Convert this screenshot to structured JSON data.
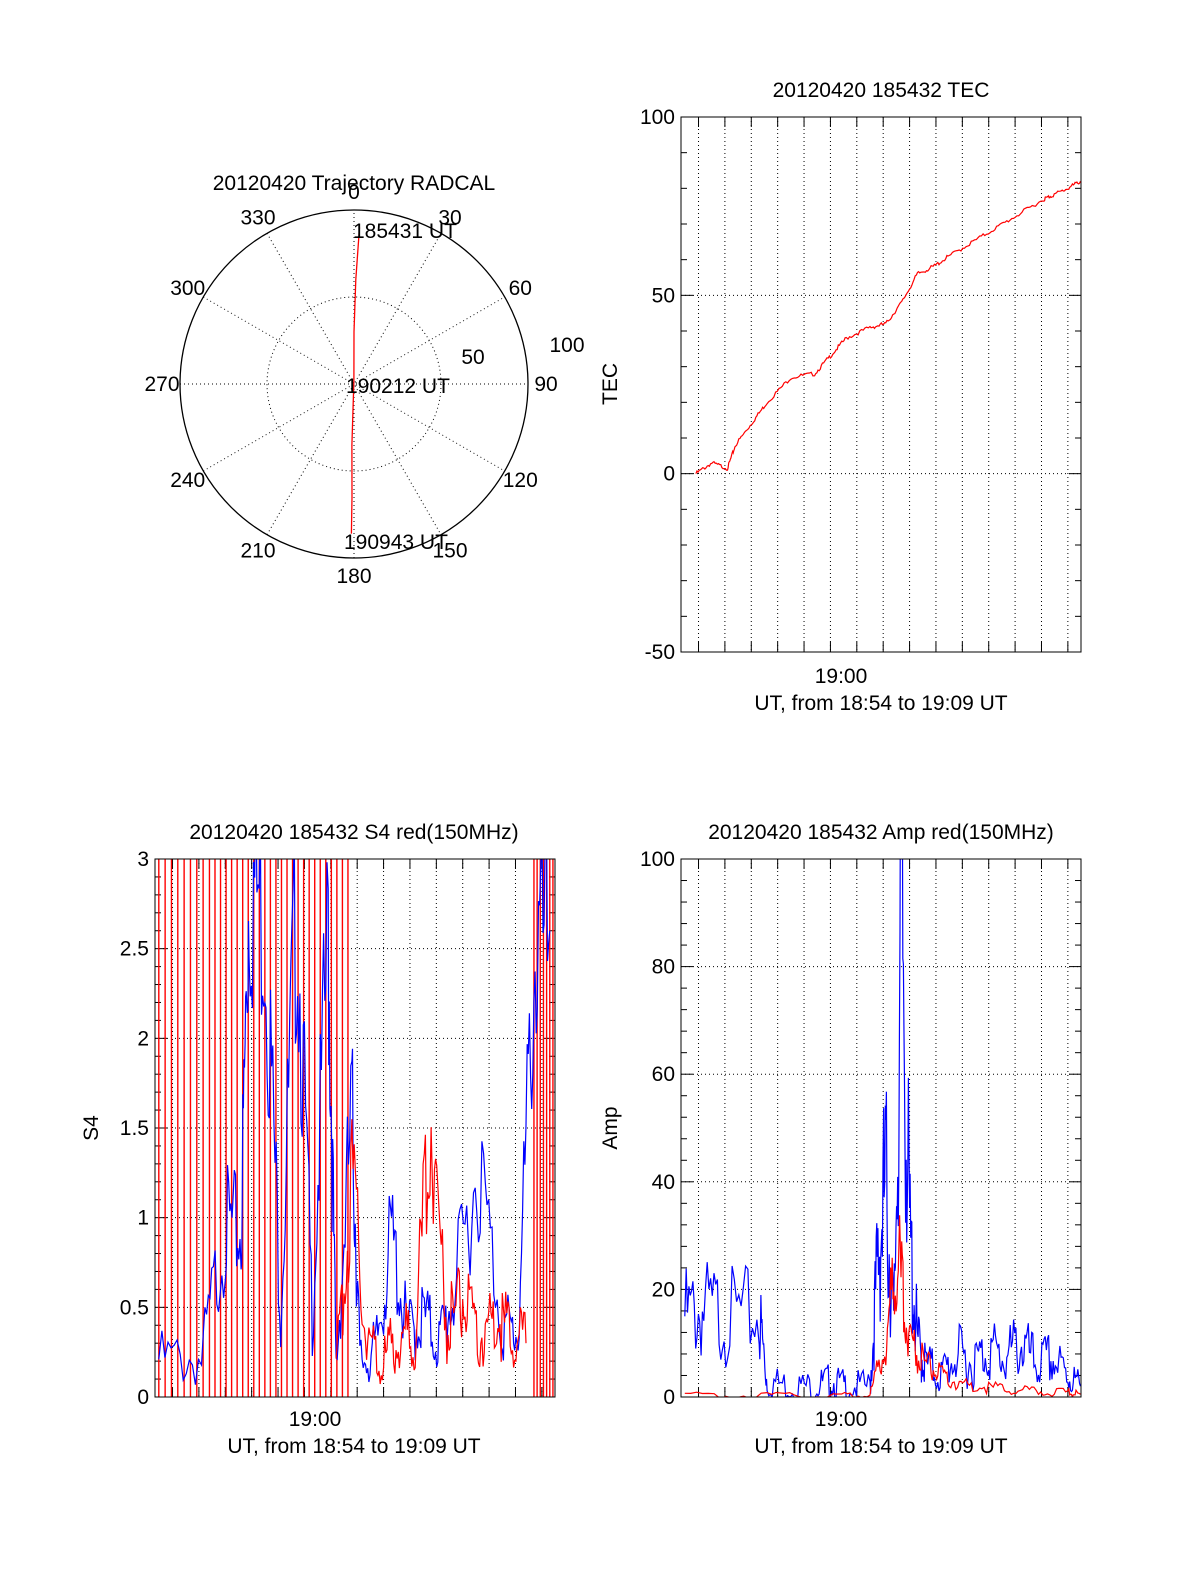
{
  "chart_data": [
    {
      "type": "polar",
      "title": "20120420 Trajectory RADCAL",
      "angle_labels": [
        "0",
        "30",
        "60",
        "90",
        "120",
        "150",
        "180",
        "210",
        "240",
        "270",
        "300",
        "330"
      ],
      "radial_labels": [
        "50",
        "100"
      ],
      "rmax": 100,
      "annotations": [
        "185431 UT",
        "190212 UT",
        "190943 UT"
      ],
      "series": [
        {
          "color": "#ff0000",
          "points": [
            [
              2,
              90
            ],
            [
              1,
              60
            ],
            [
              0,
              30
            ],
            [
              359,
              2
            ],
            [
              182,
              35
            ],
            [
              181,
              65
            ],
            [
              181,
              86
            ]
          ]
        }
      ]
    },
    {
      "type": "line",
      "title": "20120420 185432 TEC",
      "ylabel": "TEC",
      "xlabel": "UT, from 18:54 to 19:09 UT",
      "xtick_labels": [
        "19:00"
      ],
      "ytick_labels": [
        "-50",
        "0",
        "50",
        "100"
      ],
      "xlim": [
        18.9056,
        19.1583
      ],
      "ylim": [
        -50,
        100
      ],
      "grid": true,
      "series": [
        {
          "color": "#ff0000",
          "x": [
            18.915,
            18.925,
            18.935,
            18.94,
            18.95,
            18.96,
            18.975,
            18.99,
            19.0,
            19.01,
            19.025,
            19.035,
            19.045,
            19.055,
            19.065,
            19.075,
            19.09,
            19.105,
            19.12,
            19.135,
            19.14,
            19.15,
            19.158
          ],
          "y": [
            0,
            3,
            1.5,
            8,
            14,
            20,
            27,
            28,
            33,
            38,
            41,
            42,
            48,
            56,
            58,
            61,
            65,
            69,
            73,
            77,
            78,
            80,
            82
          ]
        }
      ]
    },
    {
      "type": "line",
      "title": "20120420 185432 S4 red(150MHz)",
      "ylabel": "S4",
      "xlabel": "UT, from 18:54 to 19:09 UT",
      "xtick_labels": [
        "19:00"
      ],
      "ytick_labels": [
        "0",
        "0.5",
        "1",
        "1.5",
        "2",
        "2.5",
        "3"
      ],
      "xlim": [
        18.9056,
        19.1583
      ],
      "ylim": [
        0,
        3
      ],
      "grid": true,
      "series": [
        {
          "color": "#0000ff",
          "x": [
            18.908,
            18.935,
            18.95,
            18.96,
            18.965,
            18.975,
            18.985,
            18.995,
            19.005,
            19.015,
            19.02,
            19.03,
            19.035,
            19.045,
            19.055,
            19.065,
            19.075,
            19.085,
            19.095,
            19.11,
            19.125,
            19.135,
            19.145,
            19.155
          ],
          "y": [
            0.21,
            0.21,
            0.95,
            0.9,
            2.9,
            2.7,
            0.5,
            2.8,
            0.45,
            2.6,
            0.15,
            1.6,
            0.2,
            0.25,
            0.9,
            0.35,
            0.45,
            0.3,
            0.6,
            1.3,
            0.4,
            0.35,
            2.4,
            2.6
          ]
        },
        {
          "color": "#ff0000",
          "x": [
            19.02,
            19.03,
            19.04,
            19.05,
            19.06,
            19.07,
            19.08,
            19.09,
            19.1,
            19.11,
            19.12,
            19.13,
            19.14
          ],
          "y": [
            0.12,
            1.2,
            0.3,
            0.2,
            0.35,
            0.35,
            1.6,
            0.4,
            0.55,
            0.3,
            0.45,
            0.35,
            0.3
          ]
        }
      ]
    },
    {
      "type": "line",
      "title": "20120420 185432 Amp red(150MHz)",
      "ylabel": "Amp",
      "xlabel": "UT, from 18:54 to 19:09 UT",
      "xtick_labels": [
        "19:00"
      ],
      "ytick_labels": [
        "0",
        "20",
        "40",
        "60",
        "80",
        "100"
      ],
      "xlim": [
        18.9056,
        19.1583
      ],
      "ylim": [
        0,
        100
      ],
      "grid": true,
      "series": [
        {
          "color": "#0000ff",
          "x": [
            18.908,
            18.92,
            18.935,
            18.955,
            18.96,
            18.975,
            18.99,
            19.0,
            19.01,
            19.025,
            19.03,
            19.035,
            19.04,
            19.045,
            19.05,
            19.055,
            19.06,
            19.07,
            19.08,
            19.09,
            19.1,
            19.11,
            19.12,
            19.13,
            19.14,
            19.15,
            19.158
          ],
          "y": [
            15,
            16,
            15,
            15,
            3,
            2,
            2,
            3,
            2,
            2,
            25,
            40,
            12,
            90,
            30,
            10,
            6,
            4,
            8,
            6,
            9,
            7,
            10,
            6,
            7,
            4,
            2
          ]
        },
        {
          "color": "#ff0000",
          "x": [
            18.908,
            18.96,
            19.0,
            19.025,
            19.035,
            19.042,
            19.048,
            19.055,
            19.065,
            19.075,
            19.09,
            19.11,
            19.13,
            19.15,
            19.158
          ],
          "y": [
            0.3,
            0.3,
            0.3,
            0.5,
            10,
            28,
            14,
            8,
            5,
            3,
            2,
            1.5,
            1,
            0.8,
            0.5
          ]
        }
      ]
    }
  ]
}
